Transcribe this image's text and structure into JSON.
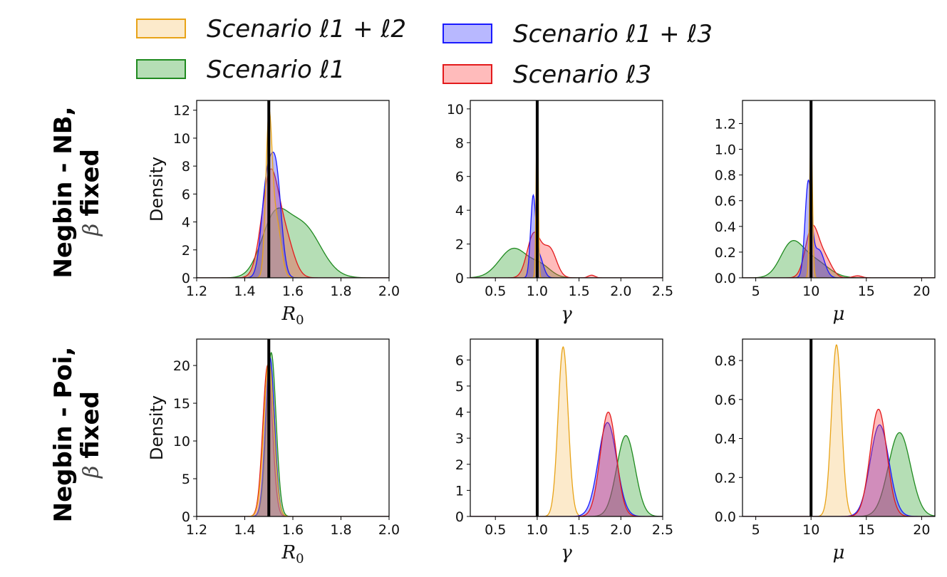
{
  "legend": {
    "items": [
      {
        "key": "l1l2",
        "label": "Scenario ℓ1 + ℓ2",
        "face": "#f5c469",
        "edge": "#e8a317"
      },
      {
        "key": "l1",
        "label": "Scenario ℓ1",
        "face": "#2ca02c",
        "edge": "#1f8a1f"
      },
      {
        "key": "l1l3",
        "label": "Scenario ℓ1 + ℓ3",
        "face": "#3333ff",
        "edge": "#1a1aff"
      },
      {
        "key": "l3",
        "label": "Scenario ℓ3",
        "face": "#ff3b3b",
        "edge": "#e31a1c"
      }
    ]
  },
  "rows": [
    {
      "label_line1": "Negbin - NB,",
      "label_beta": "β",
      "label_fixed": "fixed"
    },
    {
      "label_line1": "Negbin - Poi,",
      "label_beta": "β",
      "label_fixed": "fixed"
    }
  ],
  "chart_data": [
    {
      "type": "area",
      "row": 0,
      "col": 0,
      "xlabel": "R0",
      "ylabel": "Density",
      "xlim": [
        1.2,
        2.0
      ],
      "ylim": [
        0,
        12.7
      ],
      "xticks": [
        "1.2",
        "1.4",
        "1.6",
        "1.8",
        "2.0"
      ],
      "xtick_values": [
        1.2,
        1.4,
        1.6,
        1.8,
        2.0
      ],
      "yticks": [
        "0",
        "2",
        "4",
        "6",
        "8",
        "10",
        "12"
      ],
      "ytick_values": [
        0,
        2,
        4,
        6,
        8,
        10,
        12
      ],
      "true_value": 1.5,
      "series": [
        {
          "name": "Scenario ℓ1",
          "key": "l1",
          "components": [
            {
              "w": 1.0,
              "m": 1.52,
              "s": 0.055
            },
            {
              "w": 1.0,
              "m": 1.64,
              "s": 0.075
            }
          ],
          "peak": 5.0
        },
        {
          "name": "Scenario ℓ3",
          "key": "l3",
          "components": [
            {
              "w": 1.0,
              "m": 1.505,
              "s": 0.035
            },
            {
              "w": 0.35,
              "m": 1.57,
              "s": 0.035
            }
          ],
          "peak": 7.8
        },
        {
          "name": "Scenario ℓ1 + ℓ3",
          "key": "l1l3",
          "components": [
            {
              "w": 0.85,
              "m": 1.49,
              "s": 0.022
            },
            {
              "w": 1.0,
              "m": 1.53,
              "s": 0.022
            }
          ],
          "peak": 9.0
        },
        {
          "name": "Scenario ℓ1 + ℓ2",
          "key": "l1l2",
          "components": [
            {
              "w": 1.0,
              "m": 1.5,
              "s": 0.013
            },
            {
              "w": 0.4,
              "m": 1.53,
              "s": 0.02
            }
          ],
          "peak": 12.0
        }
      ]
    },
    {
      "type": "area",
      "row": 0,
      "col": 1,
      "xlabel": "γ",
      "ylabel": "",
      "xlim": [
        0.2,
        2.5
      ],
      "ylim": [
        0,
        10.5
      ],
      "xticks": [
        "0.5",
        "1.0",
        "1.5",
        "2.0",
        "2.5"
      ],
      "xtick_values": [
        0.5,
        1.0,
        1.5,
        2.0,
        2.5
      ],
      "yticks": [
        "0",
        "2",
        "4",
        "6",
        "8",
        "10"
      ],
      "ytick_values": [
        0,
        2,
        4,
        6,
        8,
        10
      ],
      "true_value": 1.0,
      "series": [
        {
          "name": "Scenario ℓ1",
          "key": "l1",
          "components": [
            {
              "w": 1.0,
              "m": 0.72,
              "s": 0.17
            },
            {
              "w": 0.35,
              "m": 1.05,
              "s": 0.12
            }
          ],
          "peak": 1.75
        },
        {
          "name": "Scenario ℓ3",
          "key": "l3",
          "components": [
            {
              "w": 1.0,
              "m": 0.96,
              "s": 0.08
            },
            {
              "w": 0.65,
              "m": 1.15,
              "s": 0.08
            },
            {
              "w": 0.06,
              "m": 1.65,
              "s": 0.04
            }
          ],
          "peak": 2.7
        },
        {
          "name": "Scenario ℓ1 + ℓ3",
          "key": "l1l3",
          "components": [
            {
              "w": 1.0,
              "m": 0.95,
              "s": 0.03
            },
            {
              "w": 0.3,
              "m": 1.02,
              "s": 0.05
            }
          ],
          "peak": 4.9
        },
        {
          "name": "Scenario ℓ1 + ℓ2",
          "key": "l1l2",
          "components": [
            {
              "w": 1.0,
              "m": 1.0,
              "s": 0.013
            }
          ],
          "peak": 10.0
        }
      ]
    },
    {
      "type": "area",
      "row": 0,
      "col": 2,
      "xlabel": "μ",
      "ylabel": "",
      "xlim": [
        3.8,
        21.2
      ],
      "ylim": [
        0,
        1.38
      ],
      "xticks": [
        "5",
        "10",
        "15",
        "20"
      ],
      "xtick_values": [
        5,
        10,
        15,
        20
      ],
      "yticks": [
        "0.0",
        "0.2",
        "0.4",
        "0.6",
        "0.8",
        "1.0",
        "1.2"
      ],
      "ytick_values": [
        0,
        0.2,
        0.4,
        0.6,
        0.8,
        1.0,
        1.2
      ],
      "true_value": 10.0,
      "series": [
        {
          "name": "Scenario ℓ1",
          "key": "l1",
          "components": [
            {
              "w": 1.0,
              "m": 8.2,
              "s": 1.0
            },
            {
              "w": 0.55,
              "m": 10.2,
              "s": 1.3
            }
          ],
          "peak": 0.29
        },
        {
          "name": "Scenario ℓ3",
          "key": "l3",
          "components": [
            {
              "w": 1.0,
              "m": 10.1,
              "s": 0.6
            },
            {
              "w": 0.35,
              "m": 11.3,
              "s": 0.6
            },
            {
              "w": 0.04,
              "m": 14.2,
              "s": 0.4
            }
          ],
          "peak": 0.41
        },
        {
          "name": "Scenario ℓ1 + ℓ3",
          "key": "l1l3",
          "components": [
            {
              "w": 1.0,
              "m": 9.75,
              "s": 0.3
            },
            {
              "w": 0.3,
              "m": 10.7,
              "s": 0.5
            }
          ],
          "peak": 0.76
        },
        {
          "name": "Scenario ℓ1 + ℓ2",
          "key": "l1l2",
          "components": [
            {
              "w": 1.0,
              "m": 10.0,
              "s": 0.13
            }
          ],
          "peak": 1.1
        }
      ]
    },
    {
      "type": "area",
      "row": 1,
      "col": 0,
      "xlabel": "R0",
      "ylabel": "Density",
      "xlim": [
        1.2,
        2.0
      ],
      "ylim": [
        0,
        23.5
      ],
      "xticks": [
        "1.2",
        "1.4",
        "1.6",
        "1.8",
        "2.0"
      ],
      "xtick_values": [
        1.2,
        1.4,
        1.6,
        1.8,
        2.0
      ],
      "yticks": [
        "0",
        "5",
        "10",
        "15",
        "20"
      ],
      "ytick_values": [
        0,
        5,
        10,
        15,
        20
      ],
      "true_value": 1.5,
      "series": [
        {
          "name": "Scenario ℓ1",
          "key": "l1",
          "components": [
            {
              "w": 1.0,
              "m": 1.51,
              "s": 0.02
            }
          ],
          "peak": 21.7
        },
        {
          "name": "Scenario ℓ3",
          "key": "l3",
          "components": [
            {
              "w": 1.0,
              "m": 1.495,
              "s": 0.02
            }
          ],
          "peak": 20.0
        },
        {
          "name": "Scenario ℓ1 + ℓ3",
          "key": "l1l3",
          "components": [
            {
              "w": 1.0,
              "m": 1.505,
              "s": 0.019
            }
          ],
          "peak": 21.0
        },
        {
          "name": "Scenario ℓ1 + ℓ2",
          "key": "l1l2",
          "components": [
            {
              "w": 1.0,
              "m": 1.5,
              "s": 0.021
            }
          ],
          "peak": 20.5
        }
      ]
    },
    {
      "type": "area",
      "row": 1,
      "col": 1,
      "xlabel": "γ",
      "ylabel": "",
      "xlim": [
        0.2,
        2.5
      ],
      "ylim": [
        0,
        6.8
      ],
      "xticks": [
        "0.5",
        "1.0",
        "1.5",
        "2.0",
        "2.5"
      ],
      "xtick_values": [
        0.5,
        1.0,
        1.5,
        2.0,
        2.5
      ],
      "yticks": [
        "0",
        "1",
        "2",
        "3",
        "4",
        "5",
        "6"
      ],
      "ytick_values": [
        0,
        1,
        2,
        3,
        4,
        5,
        6
      ],
      "true_value": 1.0,
      "series": [
        {
          "name": "Scenario ℓ1 + ℓ2",
          "key": "l1l2",
          "components": [
            {
              "w": 1.0,
              "m": 1.31,
              "s": 0.06
            }
          ],
          "peak": 6.5
        },
        {
          "name": "Scenario ℓ1",
          "key": "l1",
          "components": [
            {
              "w": 1.0,
              "m": 2.06,
              "s": 0.11
            }
          ],
          "peak": 3.1
        },
        {
          "name": "Scenario ℓ1 + ℓ3",
          "key": "l1l3",
          "components": [
            {
              "w": 1.0,
              "m": 1.84,
              "s": 0.11
            }
          ],
          "peak": 3.6
        },
        {
          "name": "Scenario ℓ3",
          "key": "l3",
          "components": [
            {
              "w": 1.0,
              "m": 1.85,
              "s": 0.095
            }
          ],
          "peak": 4.0
        }
      ]
    },
    {
      "type": "area",
      "row": 1,
      "col": 2,
      "xlabel": "μ",
      "ylabel": "",
      "xlim": [
        3.8,
        21.2
      ],
      "ylim": [
        0,
        0.91
      ],
      "xticks": [
        "5",
        "10",
        "15",
        "20"
      ],
      "xtick_values": [
        5,
        10,
        15,
        20
      ],
      "yticks": [
        "0.0",
        "0.2",
        "0.4",
        "0.6",
        "0.8"
      ],
      "ytick_values": [
        0,
        0.2,
        0.4,
        0.6,
        0.8
      ],
      "true_value": 10.0,
      "series": [
        {
          "name": "Scenario ℓ1 + ℓ2",
          "key": "l1l2",
          "components": [
            {
              "w": 1.0,
              "m": 12.3,
              "s": 0.45
            }
          ],
          "peak": 0.88
        },
        {
          "name": "Scenario ℓ1",
          "key": "l1",
          "components": [
            {
              "w": 1.0,
              "m": 18.0,
              "s": 1.0
            }
          ],
          "peak": 0.43
        },
        {
          "name": "Scenario ℓ1 + ℓ3",
          "key": "l1l3",
          "components": [
            {
              "w": 1.0,
              "m": 16.2,
              "s": 0.85
            }
          ],
          "peak": 0.47
        },
        {
          "name": "Scenario ℓ3",
          "key": "l3",
          "components": [
            {
              "w": 1.0,
              "m": 16.1,
              "s": 0.75
            }
          ],
          "peak": 0.55
        }
      ]
    }
  ]
}
